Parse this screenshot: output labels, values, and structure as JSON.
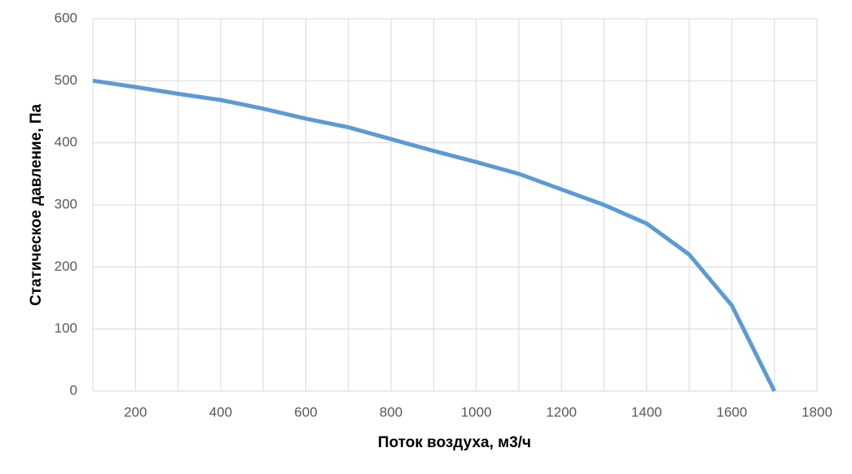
{
  "chart_data": {
    "type": "line",
    "x_label": "Поток воздуха, м3/ч",
    "y_label": "Статическое давление, Па",
    "x": [
      100,
      200,
      300,
      400,
      500,
      600,
      700,
      800,
      900,
      1000,
      1100,
      1200,
      1300,
      1400,
      1500,
      1600,
      1700
    ],
    "series": [
      {
        "color": "#5b9bd5",
        "values": [
          500,
          490,
          479,
          469,
          455,
          439,
          425,
          406,
          387,
          369,
          350,
          325,
          300,
          270,
          220,
          138,
          0
        ]
      }
    ],
    "xlim": [
      100,
      1800
    ],
    "xticks": [
      200,
      400,
      600,
      800,
      1000,
      1200,
      1400,
      1600,
      1800
    ],
    "xminorticks": [
      100,
      300,
      500,
      700,
      900,
      1100,
      1300,
      1500,
      1700
    ],
    "ylim": [
      0,
      600
    ],
    "yticks": [
      0,
      100,
      200,
      300,
      400,
      500,
      600
    ],
    "grid": true
  }
}
